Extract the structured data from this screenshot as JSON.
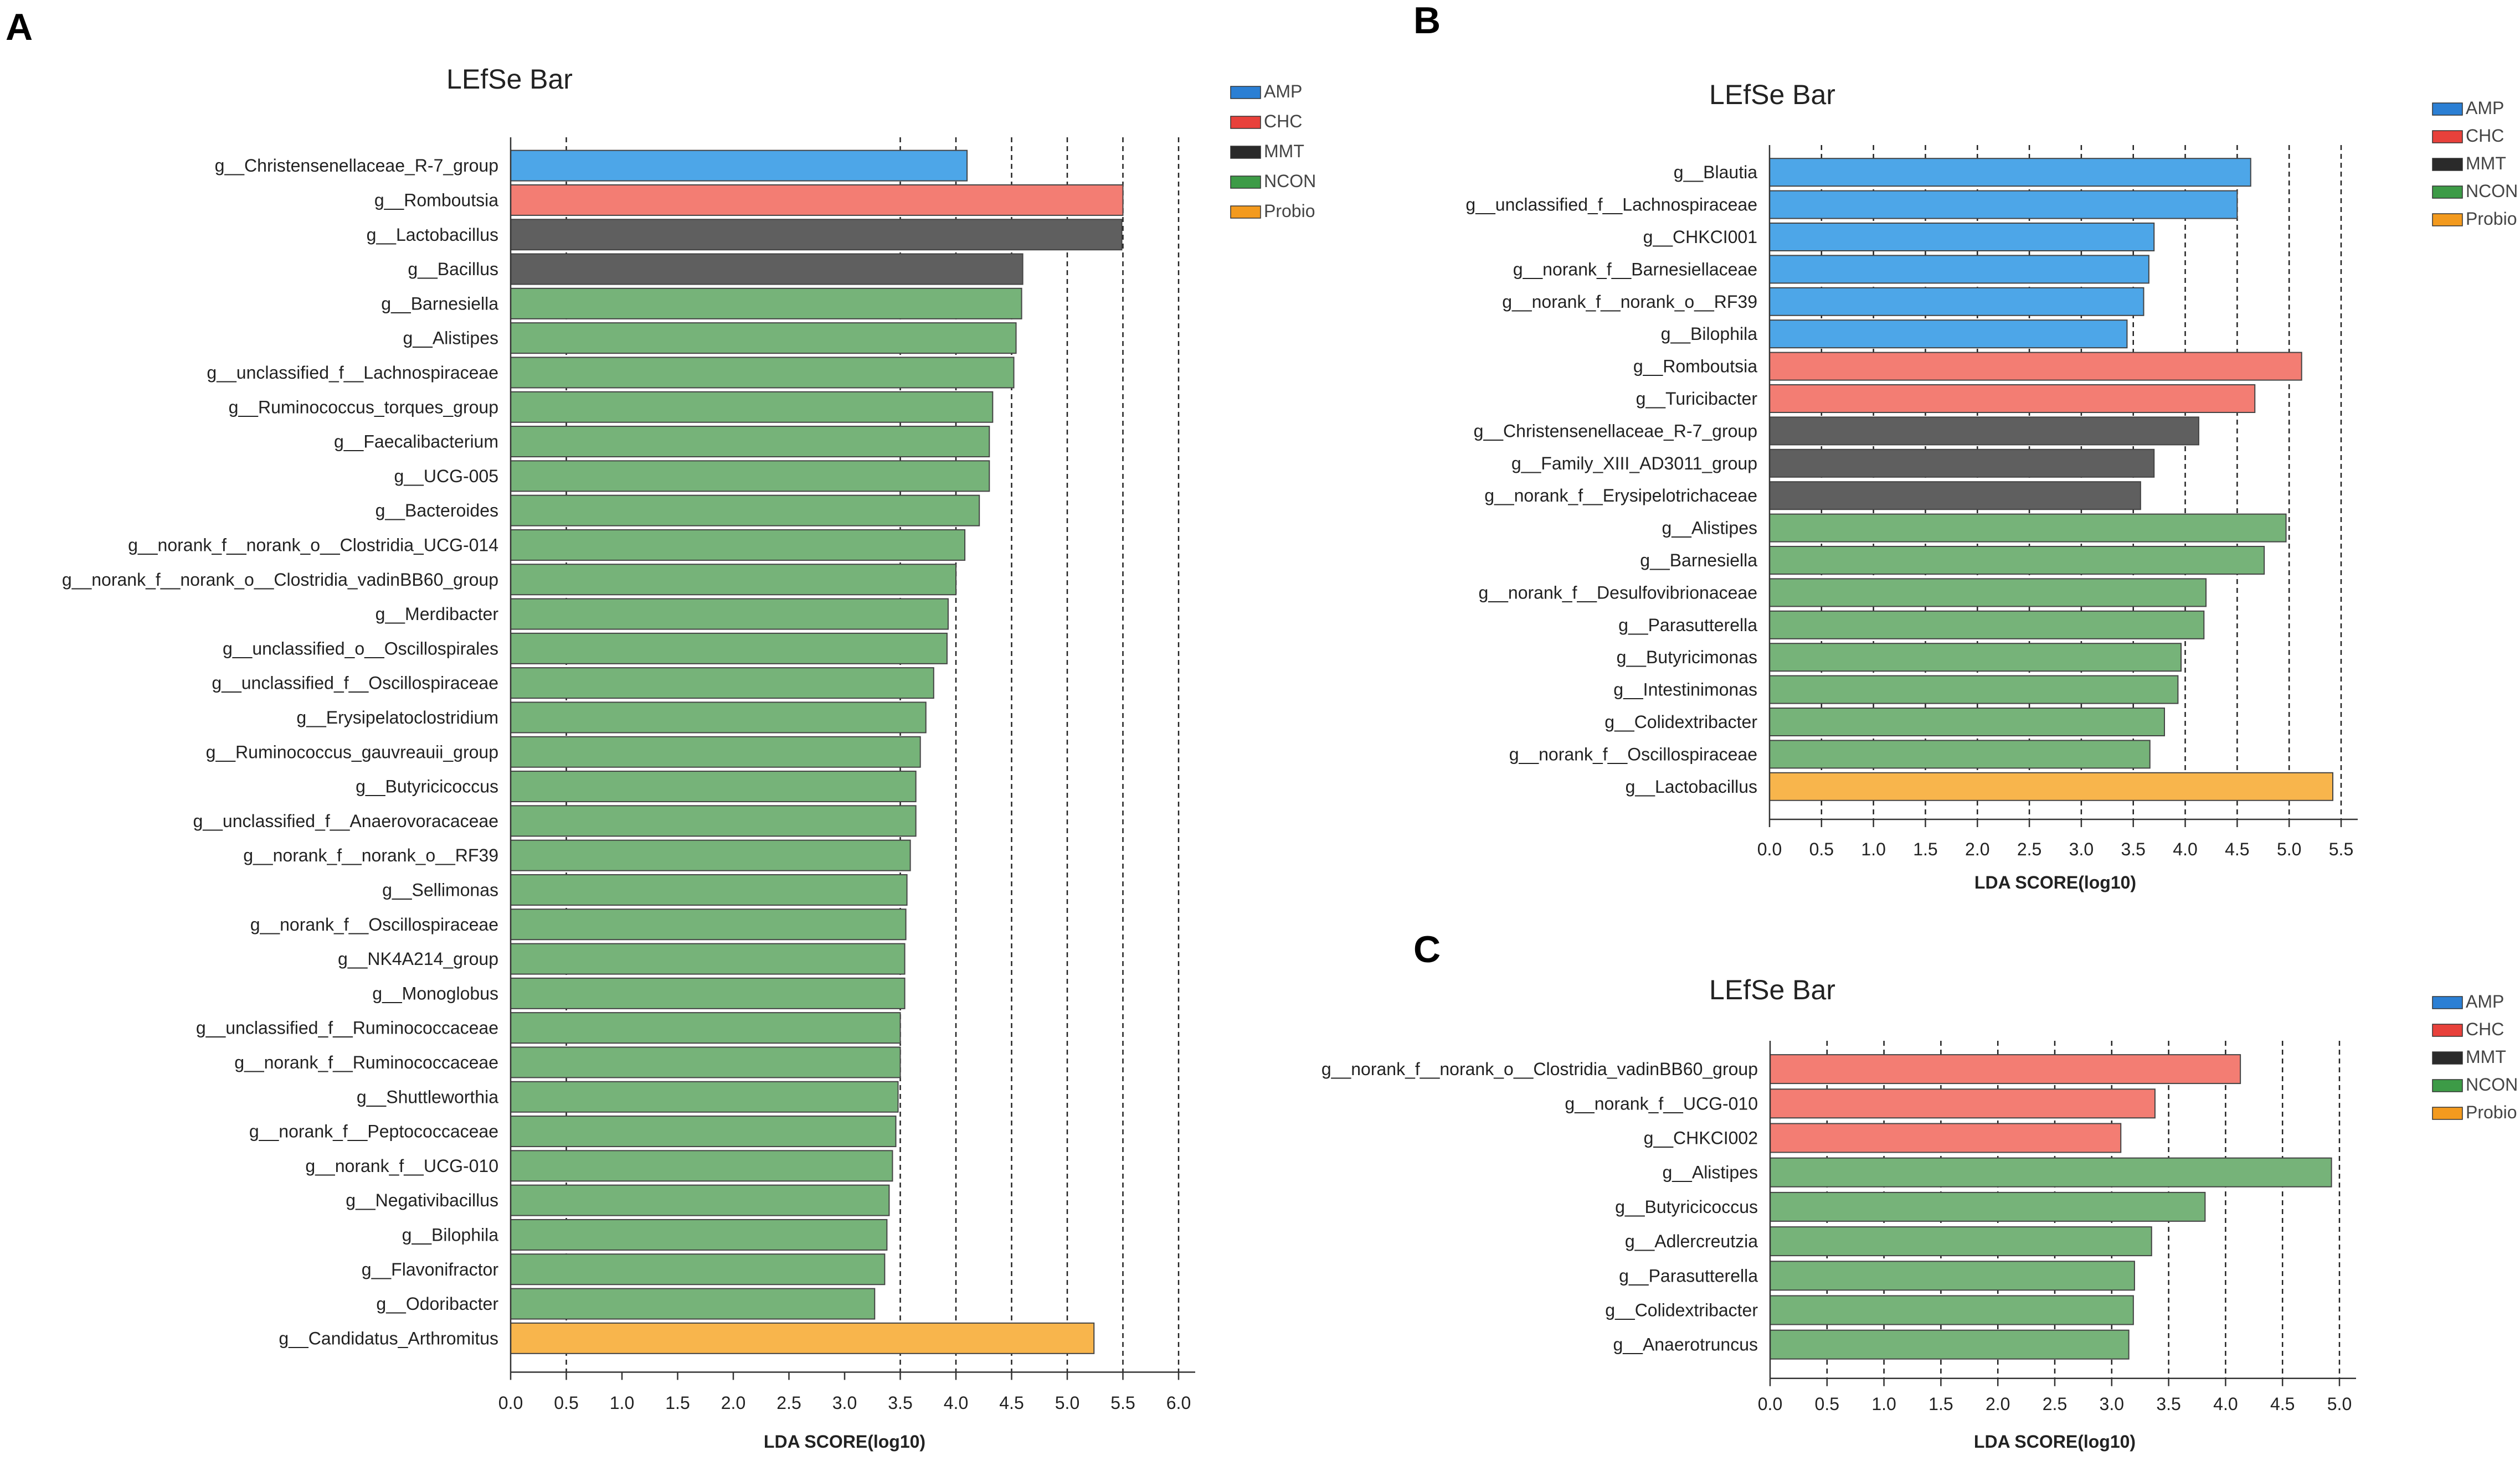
{
  "colors": {
    "AMP": "#4da6e8",
    "CHC": "#f37d73",
    "MMT": "#5f5f5f",
    "NCON": "#76b379",
    "Probio": "#f8b54c"
  },
  "legend_swatch_colors": {
    "AMP": "#2b7fd4",
    "CHC": "#e8413b",
    "MMT": "#2a2a2a",
    "NCON": "#3d9b47",
    "Probio": "#f39a1e"
  },
  "chart_data": [
    {
      "panel": "A",
      "type": "bar",
      "orientation": "horizontal",
      "title": "LEfSe Bar",
      "xlabel": "LDA SCORE(log10)",
      "xlim": [
        0,
        6.0
      ],
      "xticks": [
        "0.0",
        "0.5",
        "1.0",
        "1.5",
        "2.0",
        "2.5",
        "3.0",
        "3.5",
        "4.0",
        "4.5",
        "5.0",
        "5.5",
        "6.0"
      ],
      "grid": "dashed vertical lines at 0.5 and 3.5 to 6.0",
      "legend": [
        "AMP",
        "CHC",
        "MMT",
        "NCON",
        "Probio"
      ],
      "legend_position": "top-right",
      "bars": [
        {
          "label": "g__Christensenellaceae_R-7_group",
          "value": 4.1,
          "group": "AMP"
        },
        {
          "label": "g__Romboutsia",
          "value": 5.5,
          "group": "CHC"
        },
        {
          "label": "g__Lactobacillus",
          "value": 5.49,
          "group": "MMT"
        },
        {
          "label": "g__Bacillus",
          "value": 4.6,
          "group": "MMT"
        },
        {
          "label": "g__Barnesiella",
          "value": 4.59,
          "group": "NCON"
        },
        {
          "label": "g__Alistipes",
          "value": 4.54,
          "group": "NCON"
        },
        {
          "label": "g__unclassified_f__Lachnospiraceae",
          "value": 4.52,
          "group": "NCON"
        },
        {
          "label": "g__Ruminococcus_torques_group",
          "value": 4.33,
          "group": "NCON"
        },
        {
          "label": "g__Faecalibacterium",
          "value": 4.3,
          "group": "NCON"
        },
        {
          "label": "g__UCG-005",
          "value": 4.3,
          "group": "NCON"
        },
        {
          "label": "g__Bacteroides",
          "value": 4.21,
          "group": "NCON"
        },
        {
          "label": "g__norank_f__norank_o__Clostridia_UCG-014",
          "value": 4.08,
          "group": "NCON"
        },
        {
          "label": "g__norank_f__norank_o__Clostridia_vadinBB60_group",
          "value": 4.0,
          "group": "NCON"
        },
        {
          "label": "g__Merdibacter",
          "value": 3.93,
          "group": "NCON"
        },
        {
          "label": "g__unclassified_o__Oscillospirales",
          "value": 3.92,
          "group": "NCON"
        },
        {
          "label": "g__unclassified_f__Oscillospiraceae",
          "value": 3.8,
          "group": "NCON"
        },
        {
          "label": "g__Erysipelatoclostridium",
          "value": 3.73,
          "group": "NCON"
        },
        {
          "label": "g__Ruminococcus_gauvreauii_group",
          "value": 3.68,
          "group": "NCON"
        },
        {
          "label": "g__Butyricicoccus",
          "value": 3.64,
          "group": "NCON"
        },
        {
          "label": "g__unclassified_f__Anaerovoracaceae",
          "value": 3.64,
          "group": "NCON"
        },
        {
          "label": "g__norank_f__norank_o__RF39",
          "value": 3.59,
          "group": "NCON"
        },
        {
          "label": "g__Sellimonas",
          "value": 3.56,
          "group": "NCON"
        },
        {
          "label": "g__norank_f__Oscillospiraceae",
          "value": 3.55,
          "group": "NCON"
        },
        {
          "label": "g__NK4A214_group",
          "value": 3.54,
          "group": "NCON"
        },
        {
          "label": "g__Monoglobus",
          "value": 3.54,
          "group": "NCON"
        },
        {
          "label": "g__unclassified_f__Ruminococcaceae",
          "value": 3.5,
          "group": "NCON"
        },
        {
          "label": "g__norank_f__Ruminococcaceae",
          "value": 3.5,
          "group": "NCON"
        },
        {
          "label": "g__Shuttleworthia",
          "value": 3.48,
          "group": "NCON"
        },
        {
          "label": "g__norank_f__Peptococcaceae",
          "value": 3.46,
          "group": "NCON"
        },
        {
          "label": "g__norank_f__UCG-010",
          "value": 3.43,
          "group": "NCON"
        },
        {
          "label": "g__Negativibacillus",
          "value": 3.4,
          "group": "NCON"
        },
        {
          "label": "g__Bilophila",
          "value": 3.38,
          "group": "NCON"
        },
        {
          "label": "g__Flavonifractor",
          "value": 3.36,
          "group": "NCON"
        },
        {
          "label": "g__Odoribacter",
          "value": 3.27,
          "group": "NCON"
        },
        {
          "label": "g__Candidatus_Arthromitus",
          "value": 5.24,
          "group": "Probio"
        }
      ]
    },
    {
      "panel": "B",
      "type": "bar",
      "orientation": "horizontal",
      "title": "LEfSe Bar",
      "xlabel": "LDA SCORE(log10)",
      "xlim": [
        0,
        5.5
      ],
      "xticks": [
        "0.0",
        "0.5",
        "1.0",
        "1.5",
        "2.0",
        "2.5",
        "3.0",
        "3.5",
        "4.0",
        "4.5",
        "5.0",
        "5.5"
      ],
      "grid": "dashed vertical lines at 0.5 to 5.5",
      "legend": [
        "AMP",
        "CHC",
        "MMT",
        "NCON",
        "Probio"
      ],
      "legend_position": "top-right",
      "bars": [
        {
          "label": "g__Blautia",
          "value": 4.63,
          "group": "AMP"
        },
        {
          "label": "g__unclassified_f__Lachnospiraceae",
          "value": 4.5,
          "group": "AMP"
        },
        {
          "label": "g__CHKCI001",
          "value": 3.7,
          "group": "AMP"
        },
        {
          "label": "g__norank_f__Barnesiellaceae",
          "value": 3.65,
          "group": "AMP"
        },
        {
          "label": "g__norank_f__norank_o__RF39",
          "value": 3.6,
          "group": "AMP"
        },
        {
          "label": "g__Bilophila",
          "value": 3.44,
          "group": "AMP"
        },
        {
          "label": "g__Romboutsia",
          "value": 5.12,
          "group": "CHC"
        },
        {
          "label": "g__Turicibacter",
          "value": 4.67,
          "group": "CHC"
        },
        {
          "label": "g__Christensenellaceae_R-7_group",
          "value": 4.13,
          "group": "MMT"
        },
        {
          "label": "g__Family_XIII_AD3011_group",
          "value": 3.7,
          "group": "MMT"
        },
        {
          "label": "g__norank_f__Erysipelotrichaceae",
          "value": 3.57,
          "group": "MMT"
        },
        {
          "label": "g__Alistipes",
          "value": 4.97,
          "group": "NCON"
        },
        {
          "label": "g__Barnesiella",
          "value": 4.76,
          "group": "NCON"
        },
        {
          "label": "g__norank_f__Desulfovibrionaceae",
          "value": 4.2,
          "group": "NCON"
        },
        {
          "label": "g__Parasutterella",
          "value": 4.18,
          "group": "NCON"
        },
        {
          "label": "g__Butyricimonas",
          "value": 3.96,
          "group": "NCON"
        },
        {
          "label": "g__Intestinimonas",
          "value": 3.93,
          "group": "NCON"
        },
        {
          "label": "g__Colidextribacter",
          "value": 3.8,
          "group": "NCON"
        },
        {
          "label": "g__norank_f__Oscillospiraceae",
          "value": 3.66,
          "group": "NCON"
        },
        {
          "label": "g__Lactobacillus",
          "value": 5.42,
          "group": "Probio"
        }
      ]
    },
    {
      "panel": "C",
      "type": "bar",
      "orientation": "horizontal",
      "title": "LEfSe Bar",
      "xlabel": "LDA SCORE(log10)",
      "xlim": [
        0,
        5.0
      ],
      "xticks": [
        "0.0",
        "0.5",
        "1.0",
        "1.5",
        "2.0",
        "2.5",
        "3.0",
        "3.5",
        "4.0",
        "4.5",
        "5.0"
      ],
      "grid": "dashed vertical lines at 0.5 to 5.0",
      "legend": [
        "AMP",
        "CHC",
        "MMT",
        "NCON",
        "Probio"
      ],
      "legend_position": "top-right",
      "bars": [
        {
          "label": "g__norank_f__norank_o__Clostridia_vadinBB60_group",
          "value": 4.13,
          "group": "CHC"
        },
        {
          "label": "g__norank_f__UCG-010",
          "value": 3.38,
          "group": "CHC"
        },
        {
          "label": "g__CHKCI002",
          "value": 3.08,
          "group": "CHC"
        },
        {
          "label": "g__Alistipes",
          "value": 4.93,
          "group": "NCON"
        },
        {
          "label": "g__Butyricicoccus",
          "value": 3.82,
          "group": "NCON"
        },
        {
          "label": "g__Adlercreutzia",
          "value": 3.35,
          "group": "NCON"
        },
        {
          "label": "g__Parasutterella",
          "value": 3.2,
          "group": "NCON"
        },
        {
          "label": "g__Colidextribacter",
          "value": 3.19,
          "group": "NCON"
        },
        {
          "label": "g__Anaerotruncus",
          "value": 3.15,
          "group": "NCON"
        }
      ]
    }
  ]
}
